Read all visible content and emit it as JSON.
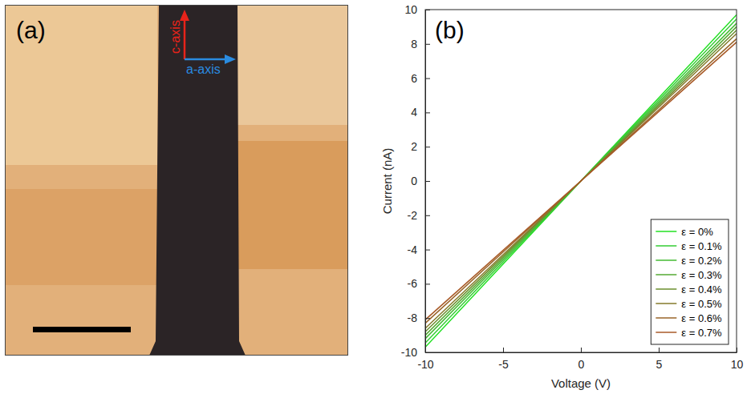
{
  "micrograph": {
    "label": "(a)",
    "arrows": [
      {
        "label": "c-axis",
        "color": "#e8231a"
      },
      {
        "label": "a-axis",
        "color": "#2a8be0"
      }
    ]
  },
  "chart_data": {
    "type": "line",
    "annotations": [
      "(b)"
    ],
    "x_label": "Voltage (V)",
    "y_label": "Current (nA)",
    "x": [
      -10,
      -5,
      0,
      5,
      10
    ],
    "series": [
      {
        "name": "ε = 0%",
        "color": "#22e022",
        "values": [
          -9.7,
          -4.85,
          0,
          4.85,
          9.7
        ]
      },
      {
        "name": "ε = 0.1%",
        "color": "#33cc33",
        "values": [
          -9.45,
          -4.72,
          0,
          4.72,
          9.45
        ]
      },
      {
        "name": "ε = 0.2%",
        "color": "#44bb33",
        "values": [
          -9.2,
          -4.6,
          0,
          4.6,
          9.2
        ]
      },
      {
        "name": "ε = 0.3%",
        "color": "#55aa33",
        "values": [
          -9.0,
          -4.5,
          0,
          4.5,
          9.0
        ]
      },
      {
        "name": "ε = 0.4%",
        "color": "#6b8f2e",
        "values": [
          -8.8,
          -4.4,
          0,
          4.4,
          8.8
        ]
      },
      {
        "name": "ε = 0.5%",
        "color": "#857a2b",
        "values": [
          -8.6,
          -4.3,
          0,
          4.3,
          8.6
        ]
      },
      {
        "name": "ε = 0.6%",
        "color": "#9a6428",
        "values": [
          -8.3,
          -4.15,
          0,
          4.15,
          8.3
        ]
      },
      {
        "name": "ε = 0.7%",
        "color": "#a85a28",
        "values": [
          -8.1,
          -4.05,
          0,
          4.05,
          8.1
        ]
      }
    ],
    "xlim": [
      -10,
      10
    ],
    "xticks": [
      -10,
      -5,
      0,
      5,
      10
    ],
    "ylim": [
      -10,
      10
    ],
    "yticks": [
      -10,
      -8,
      -6,
      -4,
      -2,
      0,
      2,
      4,
      6,
      8,
      10
    ],
    "grid": false,
    "legend": "lower right"
  }
}
